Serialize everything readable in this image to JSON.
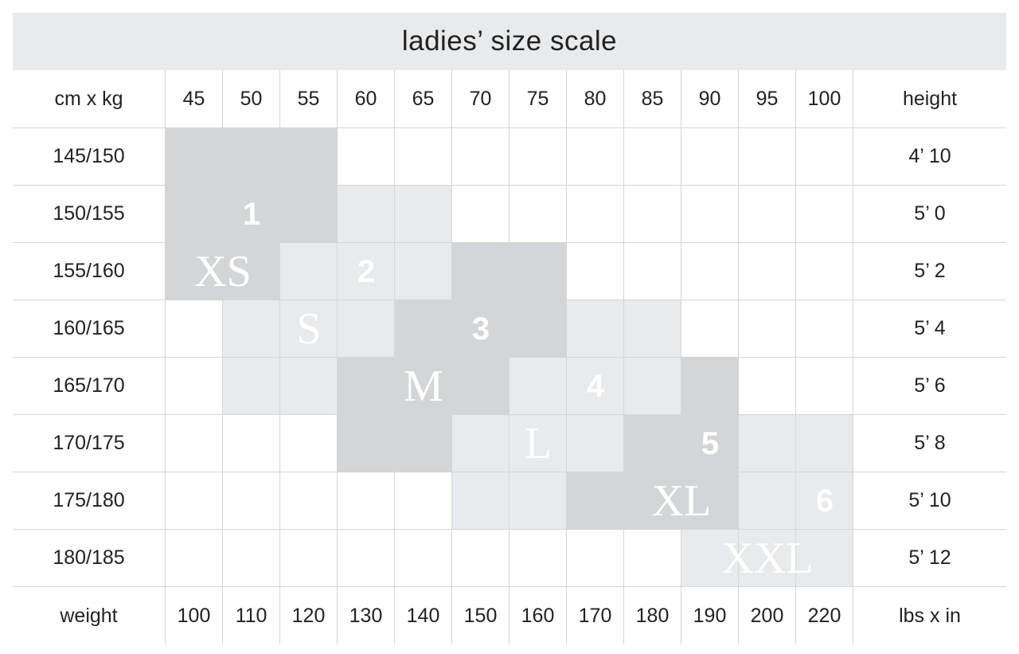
{
  "colors": {
    "dark_block": "#d3d5d6",
    "light_block": "#e8eaeb",
    "banner_bg": "#e9eaeb",
    "grid_line": "#d3d7d8",
    "text": "#222222",
    "size_label_text": "#ffffff"
  },
  "chart_data": {
    "type": "table",
    "title": "ladies’ size scale",
    "corner_top": "cm x kg",
    "header_right": "height",
    "corner_bottom": "weight",
    "footer_right": "lbs x in",
    "columns_kg": [
      "45",
      "50",
      "55",
      "60",
      "65",
      "70",
      "75",
      "80",
      "85",
      "90",
      "95",
      "100"
    ],
    "rows_cm": [
      "145/150",
      "150/155",
      "155/160",
      "160/165",
      "165/170",
      "170/175",
      "175/180",
      "180/185"
    ],
    "heights_ft": [
      "4’ 10",
      "5’ 0",
      "5’ 2",
      "5’ 4",
      "5’ 6",
      "5’ 8",
      "5’ 10",
      "5’ 12"
    ],
    "weights_lbs": [
      "100",
      "110",
      "120",
      "130",
      "140",
      "150",
      "160",
      "170",
      "180",
      "190",
      "200",
      "220"
    ],
    "shading_legend": {
      "d": "dark size block",
      "l": "light size block",
      "w": "empty"
    },
    "shading": [
      "dddwwwwwwwww",
      "dddllwwwwwww",
      "ddlllddwwwww",
      "wllldddllwww",
      "wlldddllldww",
      "wwwddlllddll",
      "wwwwwlldddll",
      "wwwwwwwwwlll"
    ],
    "size_labels": [
      {
        "text": "1",
        "style": "number",
        "row": 1,
        "col": 1,
        "span": 1
      },
      {
        "text": "XS",
        "style": "serif",
        "row": 2,
        "col": 0,
        "span": 2
      },
      {
        "text": "2",
        "style": "number",
        "row": 2,
        "col": 3,
        "span": 1
      },
      {
        "text": "S",
        "style": "serif",
        "row": 3,
        "col": 2,
        "span": 1
      },
      {
        "text": "3",
        "style": "number",
        "row": 3,
        "col": 5,
        "span": 1
      },
      {
        "text": "M",
        "style": "serif",
        "row": 4,
        "col": 4,
        "span": 1
      },
      {
        "text": "4",
        "style": "number",
        "row": 4,
        "col": 7,
        "span": 1
      },
      {
        "text": "L",
        "style": "serif",
        "row": 5,
        "col": 6,
        "span": 1
      },
      {
        "text": "5",
        "style": "number",
        "row": 5,
        "col": 9,
        "span": 1
      },
      {
        "text": "XL",
        "style": "serif",
        "row": 6,
        "col": 8,
        "span": 2
      },
      {
        "text": "6",
        "style": "number",
        "row": 6,
        "col": 11,
        "span": 1
      },
      {
        "text": "XXL",
        "style": "serif",
        "row": 7,
        "col": 9,
        "span": 3
      }
    ]
  }
}
